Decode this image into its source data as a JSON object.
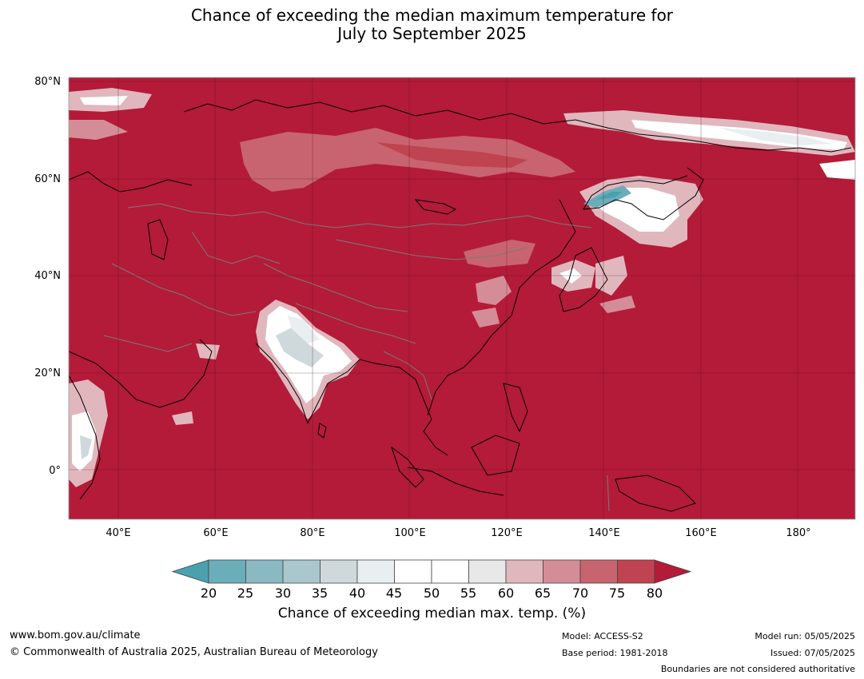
{
  "title": {
    "line1": "Chance of exceeding the median maximum temperature for",
    "line2": "July to September 2025"
  },
  "map": {
    "lat_labels": [
      "80°N",
      "60°N",
      "40°N",
      "20°N",
      "0°"
    ],
    "lon_labels": [
      "40°E",
      "60°E",
      "80°E",
      "100°E",
      "120°E",
      "140°E",
      "160°E",
      "180°"
    ],
    "lat_range": [
      -10,
      80
    ],
    "lon_range": [
      30,
      192
    ],
    "background_color": "#b31b38"
  },
  "colorbar": {
    "ticks": [
      "20",
      "25",
      "30",
      "35",
      "40",
      "45",
      "50",
      "55",
      "60",
      "65",
      "70",
      "75",
      "80"
    ],
    "colors": {
      "below_20": "#4aa0ae",
      "20_25": "#6aaeba",
      "25_30": "#8ab9c4",
      "30_35": "#a9c7cc",
      "35_40": "#cfd9dc",
      "40_45": "#e9eef0",
      "45_50": "#ffffff",
      "50_55": "#ffffff",
      "55_60": "#e8e8e8",
      "60_65": "#e0b7bd",
      "65_70": "#d48d97",
      "70_75": "#c8646f",
      "75_80": "#bf4350",
      "above_80": "#b31b38"
    },
    "label": "Chance of exceeding median max. temp. (%)"
  },
  "footer": {
    "website": "www.bom.gov.au/climate",
    "copyright": "© Commonwealth of Australia 2025, Australian Bureau of Meteorology",
    "model": "Model: ACCESS-S2",
    "base_period": "Base period: 1981-2018",
    "model_run": "Model run: 05/05/2025",
    "issued": "Issued: 07/05/2025",
    "disclaimer": "Boundaries are not considered authoritative"
  }
}
